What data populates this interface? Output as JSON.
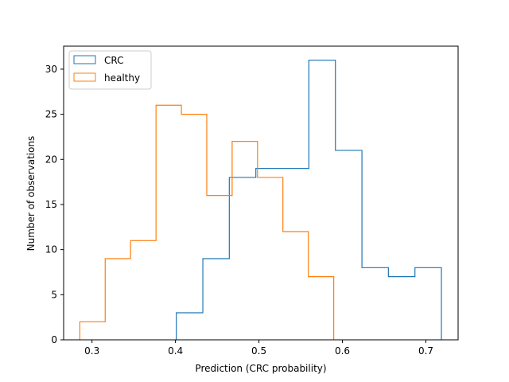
{
  "chart_data": {
    "type": "histogram",
    "xlabel": "Prediction (CRC probability)",
    "ylabel": "Number of observations",
    "xlim": [
      0.266,
      0.7386
    ],
    "ylim": [
      0,
      32.55
    ],
    "xticks": [
      0.3,
      0.4,
      0.5,
      0.6,
      0.7
    ],
    "yticks": [
      0,
      5,
      10,
      15,
      20,
      25,
      30
    ],
    "legend_position": "upper-left",
    "series": [
      {
        "name": "CRC",
        "color": "#1f77b4",
        "bin_edges": [
          0.401,
          0.4328,
          0.4645,
          0.4963,
          0.5281,
          0.5598,
          0.5916,
          0.6234,
          0.6551,
          0.6869,
          0.7186
        ],
        "counts": [
          3,
          9,
          18,
          19,
          19,
          31,
          21,
          8,
          7,
          8
        ]
      },
      {
        "name": "healthy",
        "color": "#ff7f0e",
        "bin_edges": [
          0.2854,
          0.3158,
          0.3462,
          0.3767,
          0.4071,
          0.4375,
          0.4679,
          0.4983,
          0.5287,
          0.5592,
          0.5896
        ],
        "counts": [
          2,
          9,
          11,
          26,
          25,
          16,
          22,
          18,
          12,
          7
        ]
      }
    ]
  }
}
